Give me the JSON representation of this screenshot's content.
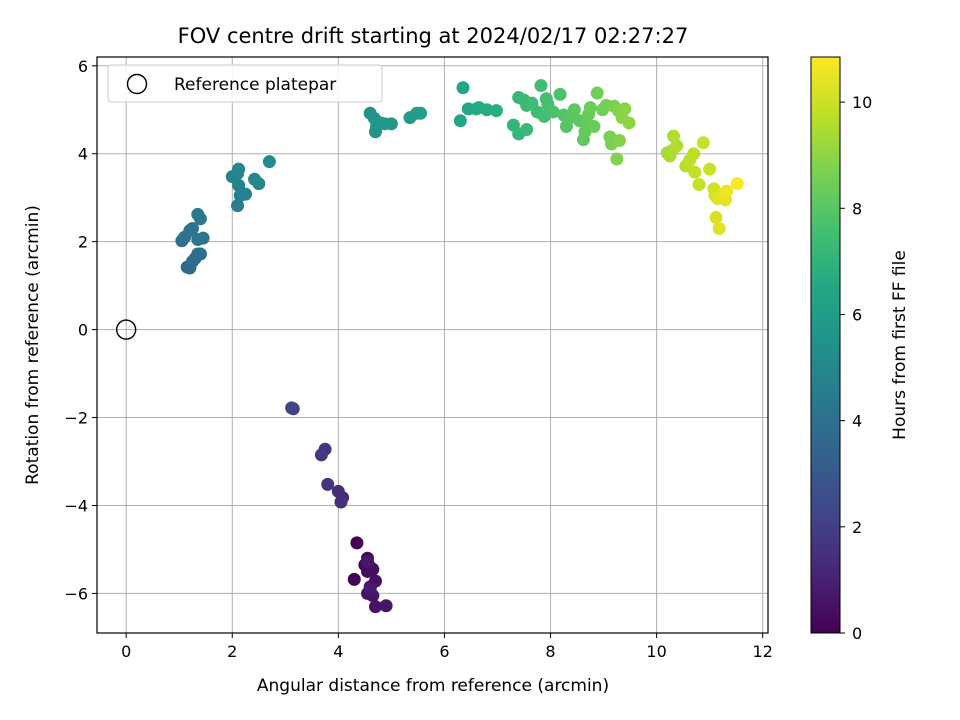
{
  "chart_data": {
    "type": "scatter",
    "title": "FOV centre drift starting at 2024/02/17 02:27:27",
    "xlabel": "Angular distance from reference (arcmin)",
    "ylabel": "Rotation from reference (arcmin)",
    "xlim": [
      -0.55,
      12.1
    ],
    "ylim": [
      -6.9,
      6.2
    ],
    "x_ticks": [
      0,
      2,
      4,
      6,
      8,
      10,
      12
    ],
    "y_ticks": [
      -6,
      -4,
      -2,
      0,
      2,
      4,
      6
    ],
    "x_tick_labels": [
      "0",
      "2",
      "4",
      "6",
      "8",
      "10",
      "12"
    ],
    "y_tick_labels": [
      "−6",
      "−4",
      "−2",
      "0",
      "2",
      "4",
      "6"
    ],
    "grid": true,
    "colormap": "viridis",
    "colorbar": {
      "label": "Hours from first FF file",
      "range": [
        0,
        10.85
      ],
      "ticks": [
        0,
        2,
        4,
        6,
        8,
        10
      ],
      "tick_labels": [
        "0",
        "2",
        "4",
        "6",
        "8",
        "10"
      ]
    },
    "legend": {
      "position": "top-left",
      "entries": [
        {
          "label": "Reference platepar",
          "marker": "hollow-circle",
          "color": "#000000"
        }
      ]
    },
    "reference_point": {
      "x": 0,
      "y": 0
    },
    "points": [
      {
        "x": 4.35,
        "y": -4.85,
        "h": 0.05
      },
      {
        "x": 4.3,
        "y": -5.68,
        "h": 0.1
      },
      {
        "x": 4.5,
        "y": -5.35,
        "h": 0.15
      },
      {
        "x": 4.55,
        "y": -5.2,
        "h": 0.2
      },
      {
        "x": 4.6,
        "y": -5.4,
        "h": 0.25
      },
      {
        "x": 4.55,
        "y": -5.5,
        "h": 0.3
      },
      {
        "x": 4.65,
        "y": -5.45,
        "h": 0.35
      },
      {
        "x": 4.6,
        "y": -5.85,
        "h": 0.4
      },
      {
        "x": 4.7,
        "y": -5.72,
        "h": 0.45
      },
      {
        "x": 4.55,
        "y": -6.0,
        "h": 0.5
      },
      {
        "x": 4.65,
        "y": -6.05,
        "h": 0.55
      },
      {
        "x": 4.7,
        "y": -6.3,
        "h": 0.6
      },
      {
        "x": 4.9,
        "y": -6.28,
        "h": 0.65
      },
      {
        "x": 4.55,
        "y": -5.28,
        "h": 0.7
      },
      {
        "x": 4.6,
        "y": -5.9,
        "h": 0.8
      },
      {
        "x": 4.08,
        "y": -3.82,
        "h": 1.3
      },
      {
        "x": 4.0,
        "y": -3.68,
        "h": 1.4
      },
      {
        "x": 4.05,
        "y": -3.92,
        "h": 1.5
      },
      {
        "x": 3.8,
        "y": -3.52,
        "h": 1.6
      },
      {
        "x": 3.75,
        "y": -2.72,
        "h": 1.7
      },
      {
        "x": 3.68,
        "y": -2.85,
        "h": 1.8
      },
      {
        "x": 3.15,
        "y": -1.8,
        "h": 2.1
      },
      {
        "x": 3.12,
        "y": -1.78,
        "h": 2.2
      },
      {
        "x": 1.15,
        "y": 1.42,
        "h": 3.7
      },
      {
        "x": 1.2,
        "y": 1.4,
        "h": 3.75
      },
      {
        "x": 1.25,
        "y": 1.55,
        "h": 3.8
      },
      {
        "x": 1.3,
        "y": 1.62,
        "h": 3.85
      },
      {
        "x": 1.4,
        "y": 1.72,
        "h": 3.9
      },
      {
        "x": 1.35,
        "y": 1.72,
        "h": 3.95
      },
      {
        "x": 1.05,
        "y": 2.02,
        "h": 4.0
      },
      {
        "x": 1.1,
        "y": 2.1,
        "h": 4.05
      },
      {
        "x": 1.2,
        "y": 2.25,
        "h": 4.1
      },
      {
        "x": 1.25,
        "y": 2.3,
        "h": 4.15
      },
      {
        "x": 1.35,
        "y": 2.05,
        "h": 4.2
      },
      {
        "x": 1.45,
        "y": 2.08,
        "h": 4.25
      },
      {
        "x": 1.35,
        "y": 2.62,
        "h": 4.3
      },
      {
        "x": 1.4,
        "y": 2.52,
        "h": 4.35
      },
      {
        "x": 2.1,
        "y": 2.82,
        "h": 4.6
      },
      {
        "x": 2.15,
        "y": 3.05,
        "h": 4.65
      },
      {
        "x": 2.25,
        "y": 3.08,
        "h": 4.7
      },
      {
        "x": 2.12,
        "y": 3.28,
        "h": 4.75
      },
      {
        "x": 2.0,
        "y": 3.48,
        "h": 4.8
      },
      {
        "x": 2.1,
        "y": 3.55,
        "h": 4.85
      },
      {
        "x": 2.12,
        "y": 3.65,
        "h": 4.9
      },
      {
        "x": 2.42,
        "y": 3.42,
        "h": 5.0
      },
      {
        "x": 2.5,
        "y": 3.32,
        "h": 5.05
      },
      {
        "x": 2.7,
        "y": 3.82,
        "h": 5.15
      },
      {
        "x": 4.6,
        "y": 4.92,
        "h": 5.5
      },
      {
        "x": 4.7,
        "y": 4.5,
        "h": 5.55
      },
      {
        "x": 4.72,
        "y": 4.62,
        "h": 5.6
      },
      {
        "x": 4.68,
        "y": 4.8,
        "h": 5.65
      },
      {
        "x": 4.8,
        "y": 4.7,
        "h": 5.7
      },
      {
        "x": 4.88,
        "y": 4.68,
        "h": 5.75
      },
      {
        "x": 5.0,
        "y": 4.68,
        "h": 5.8
      },
      {
        "x": 5.35,
        "y": 4.82,
        "h": 5.9
      },
      {
        "x": 5.48,
        "y": 4.92,
        "h": 5.95
      },
      {
        "x": 5.55,
        "y": 4.92,
        "h": 6.0
      },
      {
        "x": 6.3,
        "y": 4.75,
        "h": 6.4
      },
      {
        "x": 6.35,
        "y": 5.5,
        "h": 6.45
      },
      {
        "x": 6.45,
        "y": 5.02,
        "h": 6.5
      },
      {
        "x": 6.6,
        "y": 5.02,
        "h": 6.6
      },
      {
        "x": 6.65,
        "y": 5.05,
        "h": 6.65
      },
      {
        "x": 6.8,
        "y": 5.0,
        "h": 6.7
      },
      {
        "x": 6.98,
        "y": 4.98,
        "h": 6.8
      },
      {
        "x": 7.3,
        "y": 4.65,
        "h": 7.1
      },
      {
        "x": 7.4,
        "y": 4.45,
        "h": 7.15
      },
      {
        "x": 7.4,
        "y": 5.28,
        "h": 7.2
      },
      {
        "x": 7.5,
        "y": 5.22,
        "h": 7.25
      },
      {
        "x": 7.55,
        "y": 5.1,
        "h": 7.3
      },
      {
        "x": 7.55,
        "y": 4.55,
        "h": 7.35
      },
      {
        "x": 7.65,
        "y": 5.15,
        "h": 7.4
      },
      {
        "x": 7.75,
        "y": 4.95,
        "h": 7.45
      },
      {
        "x": 7.82,
        "y": 5.55,
        "h": 7.5
      },
      {
        "x": 7.88,
        "y": 4.85,
        "h": 7.55
      },
      {
        "x": 7.92,
        "y": 5.25,
        "h": 7.6
      },
      {
        "x": 7.95,
        "y": 5.12,
        "h": 7.65
      },
      {
        "x": 8.05,
        "y": 4.95,
        "h": 7.7
      },
      {
        "x": 8.18,
        "y": 5.35,
        "h": 7.75
      },
      {
        "x": 8.25,
        "y": 4.88,
        "h": 7.9
      },
      {
        "x": 8.3,
        "y": 4.62,
        "h": 7.95
      },
      {
        "x": 8.38,
        "y": 4.82,
        "h": 8.0
      },
      {
        "x": 8.45,
        "y": 5.0,
        "h": 8.05
      },
      {
        "x": 8.55,
        "y": 4.75,
        "h": 8.1
      },
      {
        "x": 8.62,
        "y": 4.32,
        "h": 8.15
      },
      {
        "x": 8.65,
        "y": 4.5,
        "h": 8.2
      },
      {
        "x": 8.68,
        "y": 4.72,
        "h": 8.25
      },
      {
        "x": 8.72,
        "y": 4.9,
        "h": 8.3
      },
      {
        "x": 8.75,
        "y": 5.05,
        "h": 8.35
      },
      {
        "x": 8.82,
        "y": 4.62,
        "h": 8.4
      },
      {
        "x": 8.88,
        "y": 5.38,
        "h": 8.45
      },
      {
        "x": 8.98,
        "y": 5.0,
        "h": 8.5
      },
      {
        "x": 9.05,
        "y": 5.1,
        "h": 8.55
      },
      {
        "x": 9.12,
        "y": 4.38,
        "h": 8.6
      },
      {
        "x": 9.15,
        "y": 4.22,
        "h": 8.65
      },
      {
        "x": 9.2,
        "y": 5.08,
        "h": 8.7
      },
      {
        "x": 9.25,
        "y": 3.88,
        "h": 8.75
      },
      {
        "x": 9.28,
        "y": 4.98,
        "h": 8.8
      },
      {
        "x": 9.3,
        "y": 4.3,
        "h": 8.85
      },
      {
        "x": 9.35,
        "y": 4.82,
        "h": 8.9
      },
      {
        "x": 9.4,
        "y": 5.02,
        "h": 8.95
      },
      {
        "x": 9.48,
        "y": 4.7,
        "h": 9.0
      },
      {
        "x": 10.2,
        "y": 4.02,
        "h": 9.4
      },
      {
        "x": 10.25,
        "y": 3.95,
        "h": 9.45
      },
      {
        "x": 10.3,
        "y": 4.08,
        "h": 9.5
      },
      {
        "x": 10.38,
        "y": 4.18,
        "h": 9.55
      },
      {
        "x": 10.32,
        "y": 4.4,
        "h": 9.6
      },
      {
        "x": 10.55,
        "y": 3.72,
        "h": 9.7
      },
      {
        "x": 10.62,
        "y": 3.85,
        "h": 9.75
      },
      {
        "x": 10.7,
        "y": 4.0,
        "h": 9.8
      },
      {
        "x": 10.72,
        "y": 3.58,
        "h": 9.85
      },
      {
        "x": 10.8,
        "y": 3.3,
        "h": 9.9
      },
      {
        "x": 10.88,
        "y": 4.25,
        "h": 9.95
      },
      {
        "x": 11.0,
        "y": 3.65,
        "h": 10.0
      },
      {
        "x": 11.08,
        "y": 3.2,
        "h": 10.1
      },
      {
        "x": 11.1,
        "y": 3.05,
        "h": 10.15
      },
      {
        "x": 11.12,
        "y": 2.55,
        "h": 10.2
      },
      {
        "x": 11.18,
        "y": 2.3,
        "h": 10.3
      },
      {
        "x": 11.15,
        "y": 2.98,
        "h": 10.35
      },
      {
        "x": 11.25,
        "y": 3.08,
        "h": 10.4
      },
      {
        "x": 11.3,
        "y": 2.95,
        "h": 10.5
      },
      {
        "x": 11.32,
        "y": 3.15,
        "h": 10.6
      },
      {
        "x": 11.52,
        "y": 3.32,
        "h": 10.8
      }
    ]
  }
}
